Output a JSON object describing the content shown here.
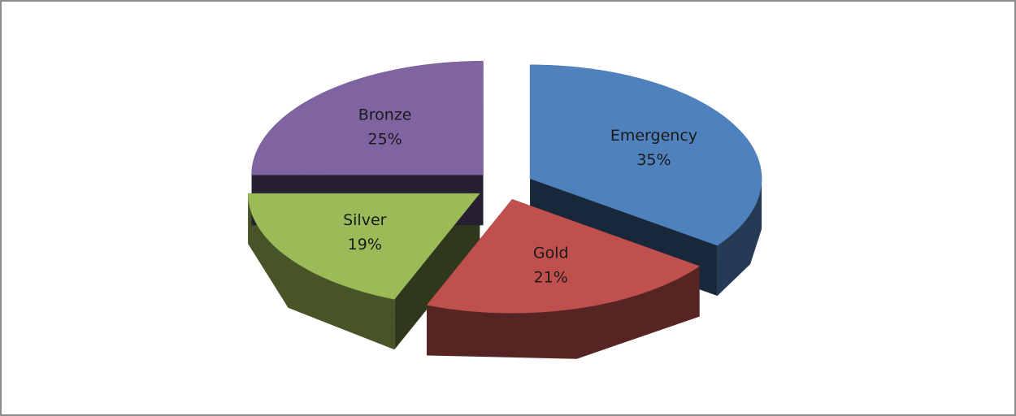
{
  "chart_data": {
    "type": "pie3d",
    "categories": [
      "Emergency",
      "Gold",
      "Silver",
      "Bronze"
    ],
    "values": [
      35,
      21,
      19,
      25
    ],
    "value_labels": [
      "35%",
      "21%",
      "19%",
      "25%"
    ],
    "colors": [
      "#4f81bd",
      "#c0504d",
      "#9bbb59",
      "#8064a2"
    ],
    "exploded": true
  }
}
